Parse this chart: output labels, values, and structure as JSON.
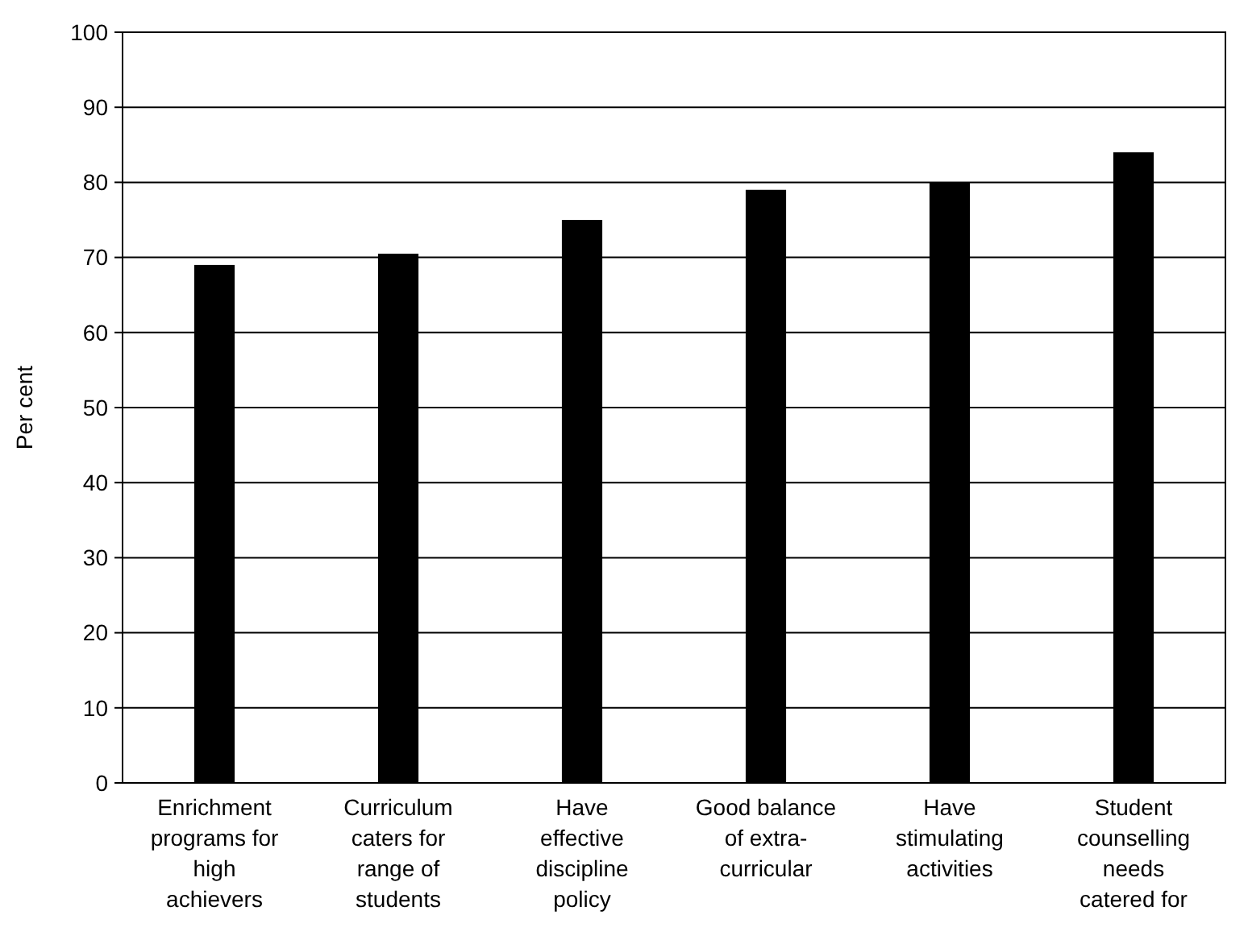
{
  "chart_data": {
    "type": "bar",
    "ylabel": "Per cent",
    "categories": [
      "Enrichment programs for high achievers",
      "Curriculum caters for range of students",
      "Have effective discipline policy",
      "Good balance of extra-curricular",
      "Have stimulating activities",
      "Student counselling needs catered for"
    ],
    "values": [
      69,
      70.5,
      75,
      79,
      80,
      84
    ],
    "color": "#000000",
    "ylim": [
      0,
      100
    ],
    "yticks": [
      0,
      10,
      20,
      30,
      40,
      50,
      60,
      70,
      80,
      90,
      100
    ],
    "grid": "y"
  }
}
